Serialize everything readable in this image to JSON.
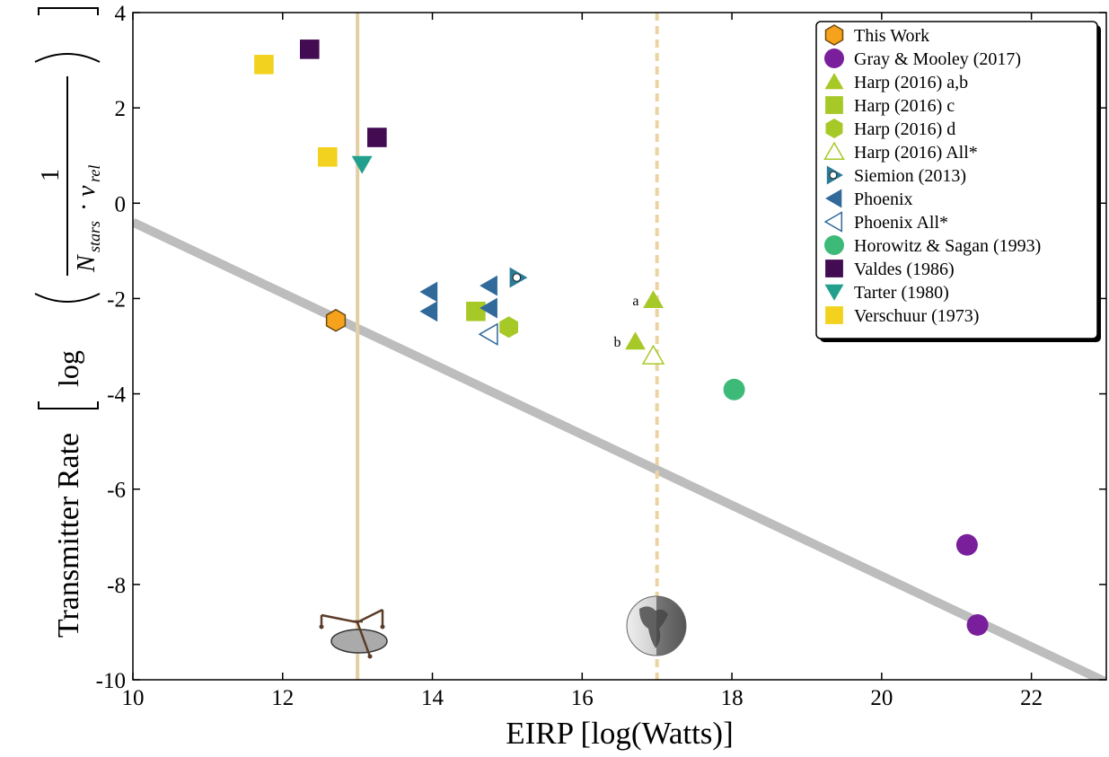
{
  "chart_data": {
    "type": "scatter",
    "x_label": "EIRP [log(Watts)]",
    "y_label": {
      "text": "Transmitter Rate",
      "log": "log",
      "numerator": "1",
      "N": "N",
      "N_sub": "stars",
      "dot": "·",
      "v": "ν",
      "v_sub": "rel"
    },
    "xlim": [
      10,
      23
    ],
    "xticks": [
      10,
      12,
      14,
      16,
      18,
      20,
      22
    ],
    "ylim": [
      -10,
      4
    ],
    "yticks": [
      -10,
      -8,
      -6,
      -4,
      -2,
      0,
      2,
      4
    ],
    "legend": "upper right",
    "fit_line": {
      "x": [
        10,
        23
      ],
      "y": [
        -0.4,
        -10.05
      ],
      "color": "#bdbdbd"
    },
    "vlines": [
      {
        "x": 13,
        "style": "solid",
        "color": "#e2cfa4"
      },
      {
        "x": 17,
        "style": "dashed",
        "color": "#ecd3a2"
      }
    ],
    "series": [
      {
        "name": "This Work",
        "marker": "hexagon",
        "filled": true,
        "color": "#f6a21c",
        "x": [
          12.71
        ],
        "values": [
          -2.46
        ]
      },
      {
        "name": "Gray & Mooley (2017)",
        "marker": "circle",
        "filled": true,
        "color": "#7a1f9c",
        "x": [
          21.14,
          21.28
        ],
        "values": [
          -7.17,
          -8.85
        ]
      },
      {
        "name": "Harp (2016) a,b",
        "marker": "triangle-up",
        "filled": true,
        "color": "#a7c927",
        "x": [
          16.95,
          16.71
        ],
        "values": [
          -2.03,
          -2.9
        ],
        "point_labels": [
          "a",
          "b"
        ]
      },
      {
        "name": "Harp (2016) c",
        "marker": "square",
        "filled": true,
        "color": "#a7c927",
        "x": [
          14.58
        ],
        "values": [
          -2.27
        ]
      },
      {
        "name": "Harp (2016) d",
        "marker": "hexagon",
        "filled": true,
        "color": "#a7c927",
        "x": [
          15.02
        ],
        "values": [
          -2.6
        ]
      },
      {
        "name": "Harp (2016) All*",
        "marker": "triangle-up",
        "filled": false,
        "color": "#a7c927",
        "x": [
          16.95
        ],
        "values": [
          -3.2
        ]
      },
      {
        "name": "Siemion (2013)",
        "marker": "triangle-right-dot",
        "filled": true,
        "color": "#2a7a95",
        "x": [
          15.14
        ],
        "values": [
          -1.56
        ]
      },
      {
        "name": "Phoenix",
        "marker": "triangle-left",
        "filled": true,
        "color": "#30699a",
        "x": [
          13.96,
          13.96,
          14.76,
          14.76
        ],
        "values": [
          -1.86,
          -2.27,
          -1.73,
          -2.2
        ]
      },
      {
        "name": "Phoenix All*",
        "marker": "triangle-left",
        "filled": false,
        "color": "#30699a",
        "x": [
          14.76
        ],
        "values": [
          -2.75
        ]
      },
      {
        "name": "Horowitz & Sagan (1993)",
        "marker": "circle",
        "filled": true,
        "color": "#3dba78",
        "x": [
          18.03
        ],
        "values": [
          -3.91
        ]
      },
      {
        "name": "Valdes (1986)",
        "marker": "square",
        "filled": true,
        "color": "#420b52",
        "x": [
          12.36,
          13.26
        ],
        "values": [
          3.23,
          1.38
        ]
      },
      {
        "name": "Tarter (1980)",
        "marker": "triangle-down",
        "filled": true,
        "color": "#22a08d",
        "x": [
          13.06
        ],
        "values": [
          0.82
        ]
      },
      {
        "name": "Verschuur (1973)",
        "marker": "square",
        "filled": true,
        "color": "#f2d21e",
        "x": [
          11.75,
          12.6
        ],
        "values": [
          2.91,
          0.97
        ]
      }
    ]
  }
}
